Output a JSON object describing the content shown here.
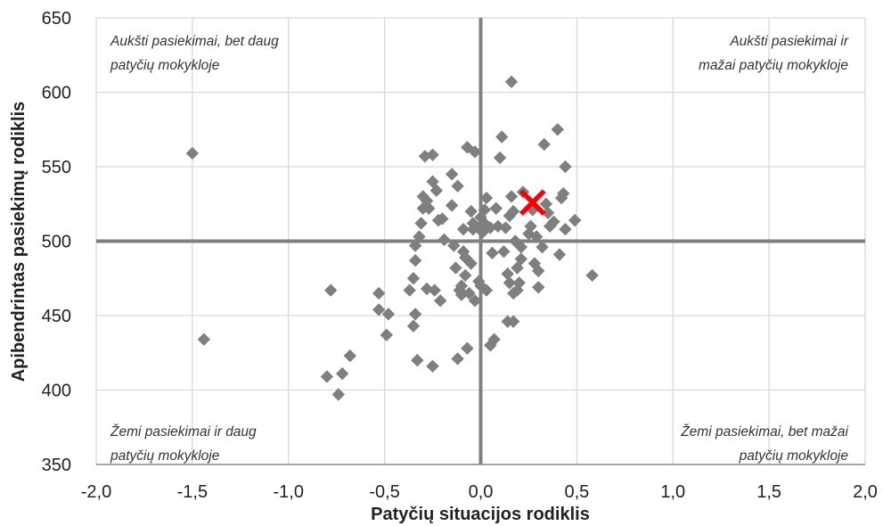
{
  "chart_data": {
    "type": "scatter",
    "xlabel": "Patyčių situacijos rodiklis",
    "ylabel": "Apibendrintas pasiekimų rodiklis",
    "xlim": [
      -2.0,
      2.0
    ],
    "ylim": [
      350,
      650
    ],
    "x_ticks": [
      "-2,0",
      "-1,5",
      "-1,0",
      "-0,5",
      "0,0",
      "0,5",
      "1,0",
      "1,5",
      "2,0"
    ],
    "y_ticks": [
      "350",
      "400",
      "450",
      "500",
      "550",
      "600",
      "650"
    ],
    "grid": true,
    "reference_lines": {
      "x": 0,
      "y": 500
    },
    "quadrant_labels": {
      "top_left": [
        "Aukšti pasiekimai, bet daug",
        "patyčių mokykloje"
      ],
      "top_right": [
        "Aukšti pasiekimai ir",
        "mažai patyčių mokykloje"
      ],
      "bottom_left": [
        "Žemi pasiekimai ir daug",
        "patyčių mokykloje"
      ],
      "bottom_right": [
        "Žemi pasiekimai, bet mažai",
        "patyčių mokykloje"
      ]
    },
    "series": [
      {
        "marker": "diamond",
        "color": "#7f7f7f",
        "points": [
          [
            -1.5,
            559
          ],
          [
            -1.44,
            434
          ],
          [
            -0.8,
            409
          ],
          [
            -0.78,
            467
          ],
          [
            -0.74,
            397
          ],
          [
            -0.72,
            411
          ],
          [
            -0.68,
            423
          ],
          [
            -0.53,
            465
          ],
          [
            -0.53,
            454
          ],
          [
            -0.49,
            437
          ],
          [
            -0.48,
            451
          ],
          [
            -0.37,
            467
          ],
          [
            -0.35,
            443
          ],
          [
            -0.35,
            475
          ],
          [
            -0.34,
            451
          ],
          [
            -0.34,
            487
          ],
          [
            -0.34,
            497
          ],
          [
            -0.33,
            420
          ],
          [
            -0.32,
            503
          ],
          [
            -0.31,
            512
          ],
          [
            -0.3,
            522
          ],
          [
            -0.3,
            530
          ],
          [
            -0.29,
            557
          ],
          [
            -0.28,
            527
          ],
          [
            -0.28,
            468
          ],
          [
            -0.27,
            522
          ],
          [
            -0.25,
            558
          ],
          [
            -0.25,
            540
          ],
          [
            -0.25,
            416
          ],
          [
            -0.24,
            467
          ],
          [
            -0.23,
            534
          ],
          [
            -0.22,
            514
          ],
          [
            -0.21,
            460
          ],
          [
            -0.2,
            515
          ],
          [
            -0.19,
            501
          ],
          [
            -0.15,
            545
          ],
          [
            -0.15,
            524
          ],
          [
            -0.14,
            497
          ],
          [
            -0.13,
            482
          ],
          [
            -0.12,
            421
          ],
          [
            -0.12,
            537
          ],
          [
            -0.11,
            467
          ],
          [
            -0.1,
            464
          ],
          [
            -0.1,
            470
          ],
          [
            -0.09,
            508
          ],
          [
            -0.09,
            493
          ],
          [
            -0.08,
            489
          ],
          [
            -0.08,
            477
          ],
          [
            -0.07,
            428
          ],
          [
            -0.07,
            563
          ],
          [
            -0.06,
            465
          ],
          [
            -0.05,
            485
          ],
          [
            -0.05,
            520
          ],
          [
            -0.04,
            512
          ],
          [
            -0.04,
            508
          ],
          [
            -0.03,
            560
          ],
          [
            -0.03,
            460
          ],
          [
            -0.01,
            473
          ],
          [
            0.0,
            470
          ],
          [
            0.0,
            516
          ],
          [
            0.0,
            510
          ],
          [
            0.01,
            506
          ],
          [
            0.02,
            512
          ],
          [
            0.02,
            521
          ],
          [
            0.03,
            529
          ],
          [
            0.03,
            467
          ],
          [
            0.05,
            430
          ],
          [
            0.05,
            509
          ],
          [
            0.06,
            492
          ],
          [
            0.07,
            434
          ],
          [
            0.08,
            522
          ],
          [
            0.09,
            510
          ],
          [
            0.1,
            556
          ],
          [
            0.11,
            570
          ],
          [
            0.12,
            493
          ],
          [
            0.13,
            509
          ],
          [
            0.14,
            446
          ],
          [
            0.14,
            478
          ],
          [
            0.15,
            517
          ],
          [
            0.15,
            472
          ],
          [
            0.16,
            607
          ],
          [
            0.16,
            530
          ],
          [
            0.17,
            446
          ],
          [
            0.17,
            520
          ],
          [
            0.17,
            465
          ],
          [
            0.18,
            500
          ],
          [
            0.19,
            482
          ],
          [
            0.19,
            467
          ],
          [
            0.2,
            472
          ],
          [
            0.21,
            488
          ],
          [
            0.21,
            496
          ],
          [
            0.22,
            533
          ],
          [
            0.25,
            505
          ],
          [
            0.26,
            510
          ],
          [
            0.27,
            521
          ],
          [
            0.28,
            485
          ],
          [
            0.29,
            503
          ],
          [
            0.3,
            469
          ],
          [
            0.3,
            480
          ],
          [
            0.32,
            496
          ],
          [
            0.33,
            565
          ],
          [
            0.34,
            525
          ],
          [
            0.35,
            519
          ],
          [
            0.36,
            510
          ],
          [
            0.38,
            513
          ],
          [
            0.4,
            575
          ],
          [
            0.41,
            491
          ],
          [
            0.42,
            529
          ],
          [
            0.43,
            532
          ],
          [
            0.44,
            508
          ],
          [
            0.44,
            550
          ],
          [
            0.49,
            514
          ],
          [
            0.58,
            477
          ]
        ]
      },
      {
        "marker": "x",
        "color": "#ff0000",
        "points": [
          [
            0.27,
            526
          ]
        ]
      }
    ]
  }
}
